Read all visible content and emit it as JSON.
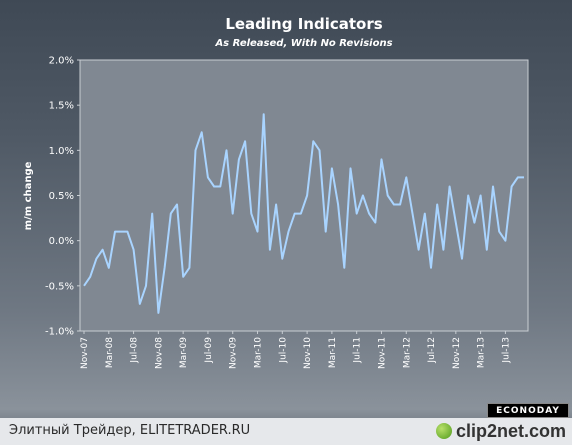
{
  "chart_data": {
    "type": "line",
    "title": "Leading Indicators",
    "subtitle": "As Released, With No Revisions",
    "ylabel": "m/m change",
    "xlabel": "",
    "ylim": [
      -1.0,
      2.0
    ],
    "yticks": [
      "2.0%",
      "1.5%",
      "1.0%",
      "0.5%",
      "0.0%",
      "-0.5%",
      "-1.0%"
    ],
    "ytick_values": [
      2.0,
      1.5,
      1.0,
      0.5,
      0.0,
      -0.5,
      -1.0
    ],
    "x_tick_labels": [
      "Nov-07",
      "Mar-08",
      "Jul-08",
      "Nov-08",
      "Mar-09",
      "Jul-09",
      "Nov-09",
      "Mar-10",
      "Jul-10",
      "Nov-10",
      "Mar-11",
      "Jul-11",
      "Nov-11",
      "Mar-12",
      "Jul-12",
      "Nov-12",
      "Mar-13",
      "Jul-13"
    ],
    "x_start": "Nov-07",
    "x_end": "Oct-13",
    "grid": false,
    "series": [
      {
        "values": [
          -0.5,
          -0.4,
          -0.2,
          -0.1,
          -0.3,
          0.1,
          0.1,
          0.1,
          -0.1,
          -0.7,
          -0.5,
          0.3,
          -0.8,
          -0.3,
          0.3,
          0.4,
          -0.4,
          -0.3,
          1.0,
          1.2,
          0.7,
          0.6,
          0.6,
          1.0,
          0.3,
          0.9,
          1.1,
          0.3,
          0.1,
          1.4,
          -0.1,
          0.4,
          -0.2,
          0.1,
          0.3,
          0.3,
          0.5,
          1.1,
          1.0,
          0.1,
          0.8,
          0.4,
          -0.3,
          0.8,
          0.3,
          0.5,
          0.3,
          0.2,
          0.9,
          0.5,
          0.4,
          0.4,
          0.7,
          0.3,
          -0.1,
          0.3,
          -0.3,
          0.4,
          -0.1,
          0.6,
          0.2,
          -0.2,
          0.5,
          0.2,
          0.5,
          -0.1,
          0.6,
          0.1,
          0.0,
          0.6,
          0.7,
          0.7
        ],
        "color": "#a9d4ff"
      }
    ]
  },
  "brand_badge": "ECONODAY",
  "footer": {
    "text": "Элитный Трейдер, ELITETRADER.RU",
    "logo": "clip2net.com"
  }
}
